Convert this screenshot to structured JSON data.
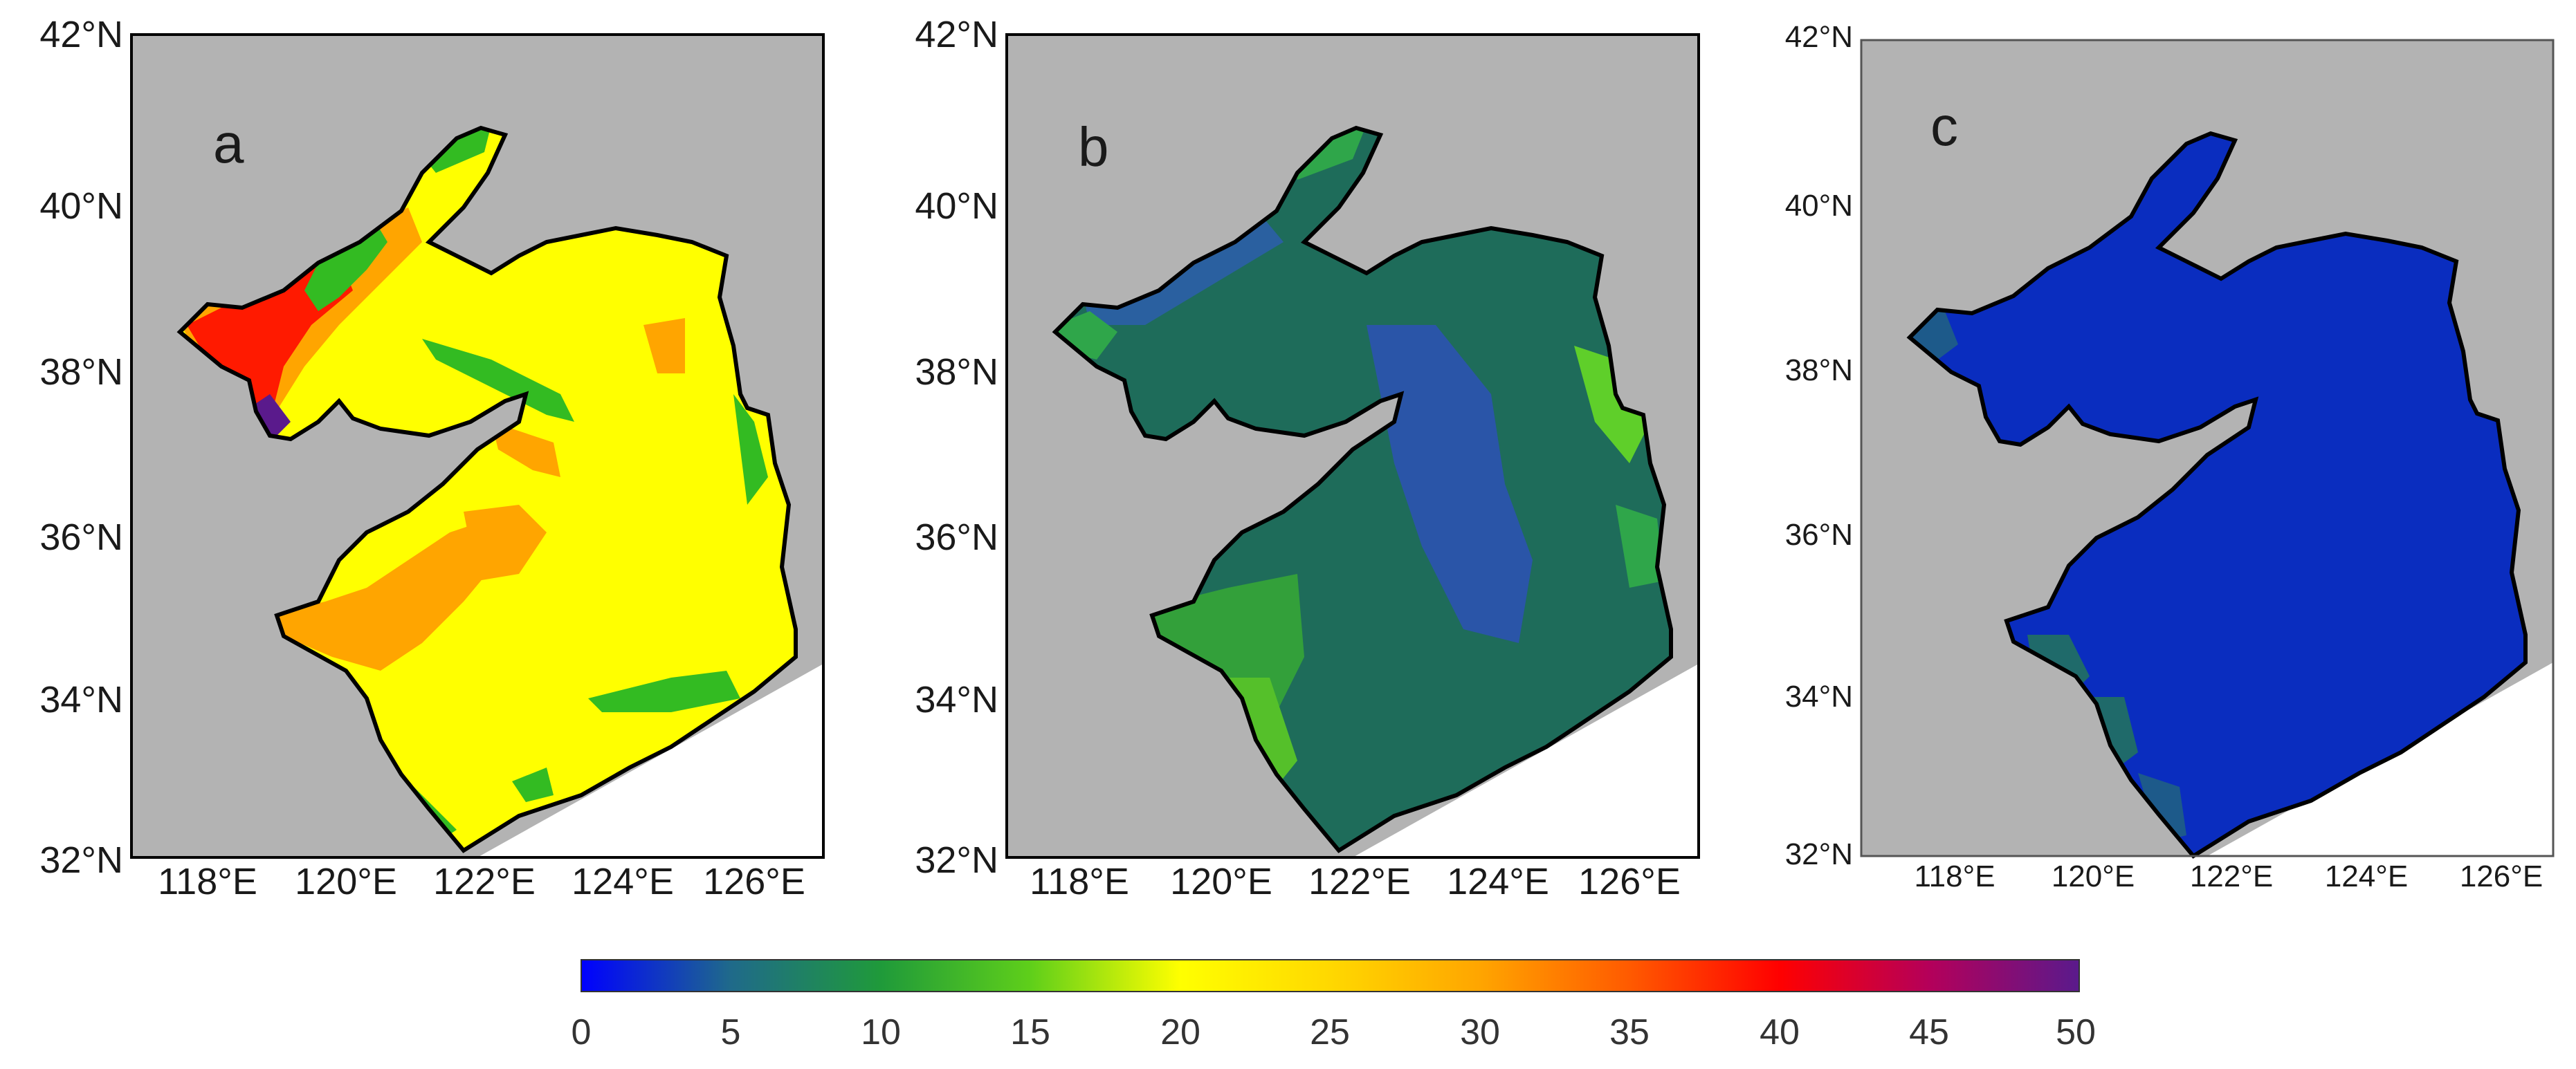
{
  "panels": [
    {
      "label": "a",
      "y_ticks": [
        "42°N",
        "40°N",
        "38°N",
        "36°N",
        "34°N",
        "32°N"
      ],
      "x_ticks": [
        "118°E",
        "120°E",
        "122°E",
        "124°E",
        "126°E"
      ]
    },
    {
      "label": "b",
      "y_ticks": [
        "42°N",
        "40°N",
        "38°N",
        "36°N",
        "34°N",
        "32°N"
      ],
      "x_ticks": [
        "118°E",
        "120°E",
        "122°E",
        "124°E",
        "126°E"
      ]
    },
    {
      "label": "c",
      "y_ticks": [
        "42°N",
        "40°N",
        "38°N",
        "36°N",
        "34°N",
        "32°N"
      ],
      "x_ticks": [
        "118°E",
        "120°E",
        "122°E",
        "124°E",
        "126°E"
      ]
    }
  ],
  "colorbar": {
    "ticks": [
      "0",
      "5",
      "10",
      "15",
      "20",
      "25",
      "30",
      "35",
      "40",
      "45",
      "50"
    ],
    "range": [
      0,
      50
    ],
    "colors": [
      "#0000ff",
      "#1f6a8a",
      "#22aa22",
      "#ffff00",
      "#ffa500",
      "#ff0000",
      "#5a1a8c"
    ]
  },
  "map_colors": {
    "land": "#b3b3b3",
    "coast": "#000000"
  }
}
